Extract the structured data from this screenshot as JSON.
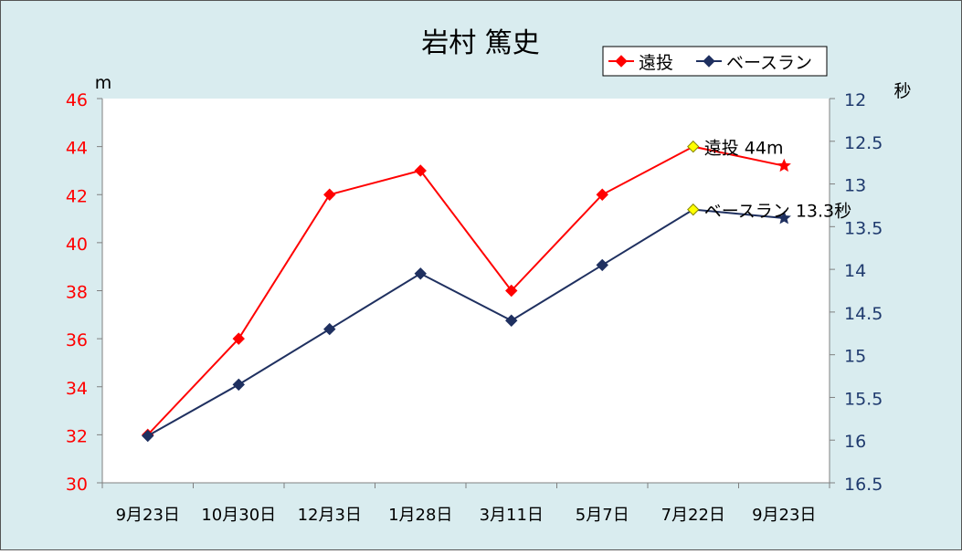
{
  "chart_data": {
    "type": "line",
    "title": "岩村 篤史",
    "categories": [
      "9月23日",
      "10月30日",
      "12月3日",
      "1月28日",
      "3月11日",
      "5月7日",
      "7月22日",
      "9月23日"
    ],
    "left_axis": {
      "unit": "m",
      "ylim": [
        30,
        46
      ],
      "ticks": [
        "30",
        "32",
        "34",
        "36",
        "38",
        "40",
        "42",
        "44",
        "46"
      ],
      "color": "#ff0000"
    },
    "right_axis": {
      "unit": "秒",
      "ylim": [
        12,
        16.5
      ],
      "reversed": true,
      "ticks": [
        "12",
        "12.5",
        "13",
        "13.5",
        "14",
        "14.5",
        "15",
        "15.5",
        "16",
        "16.5"
      ],
      "color": "#1f3a6e"
    },
    "series": [
      {
        "name": "遠投",
        "axis": "left",
        "color": "#ff0000",
        "values": [
          32,
          36,
          42,
          43,
          38,
          42,
          44,
          43.2
        ],
        "highlight_index": 6,
        "annotation": "遠投 44m"
      },
      {
        "name": "ベースラン",
        "axis": "right",
        "color": "#1f3060",
        "values": [
          15.95,
          15.35,
          14.7,
          14.05,
          14.6,
          13.95,
          13.3,
          13.4
        ],
        "highlight_index": 6,
        "annotation": "ベースラン 13.3秒"
      }
    ],
    "legend": "top-right",
    "grid": false,
    "highlight_color": "#ffff00",
    "outer_background": "#d9ecef",
    "plot_background": "#ffffff"
  }
}
